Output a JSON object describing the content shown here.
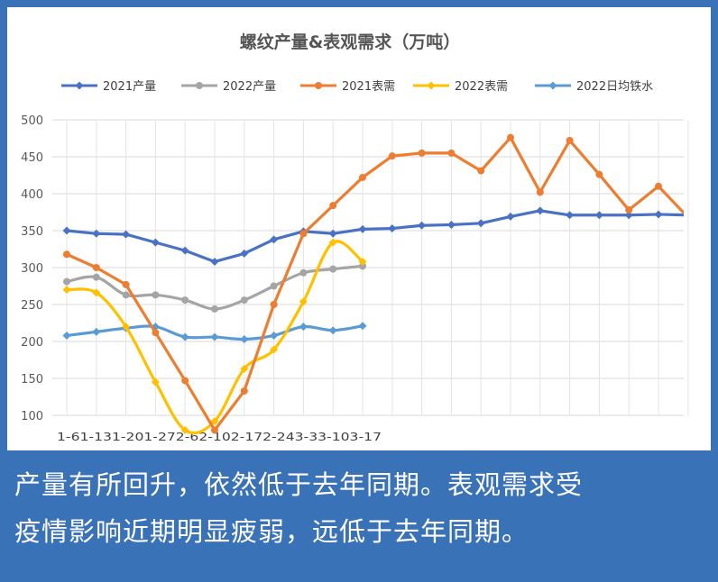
{
  "caption": {
    "line1": "产量有所回升，依然低于去年同期。表观需求受",
    "line2": "疫情影响近期明显疲弱，远低于去年同期。"
  },
  "chart_data": {
    "type": "line",
    "title": "螺纹产量&表观需求（万吨）",
    "xlabel": "",
    "ylabel": "",
    "ylim": [
      100,
      500
    ],
    "yticks": [
      "100",
      "150",
      "200",
      "250",
      "300",
      "350",
      "400",
      "450",
      "500"
    ],
    "x_tick_labels": [
      "1-6",
      "1-13",
      "1-20",
      "1-27",
      "2-6",
      "2-10",
      "2-17",
      "2-24",
      "3-3",
      "3-10",
      "3-17"
    ],
    "grid": true,
    "legend_position": "top",
    "series": [
      {
        "name": "2021产量",
        "color": "#4a72c4",
        "marker": "diamond",
        "smooth": false,
        "values": [
          350,
          346,
          345,
          334,
          323,
          308,
          319,
          338,
          349,
          346,
          352,
          353,
          357,
          358,
          360,
          369,
          377,
          371,
          371,
          371,
          372,
          371
        ]
      },
      {
        "name": "2022产量",
        "color": "#a5a5a5",
        "marker": "circle",
        "smooth": true,
        "values": [
          281,
          287,
          263,
          263,
          256,
          244,
          256,
          275,
          293,
          298,
          302
        ]
      },
      {
        "name": "2021表需",
        "color": "#ed7d31",
        "marker": "circle",
        "smooth": false,
        "values": [
          318,
          300,
          277,
          212,
          147,
          80,
          133,
          250,
          346,
          384,
          422,
          451,
          455,
          455,
          431,
          476,
          402,
          472,
          426,
          378,
          410,
          368
        ]
      },
      {
        "name": "2022表需",
        "color": "#ffc000",
        "marker": "diamond",
        "smooth": true,
        "values": [
          270,
          266,
          220,
          145,
          80,
          92,
          163,
          189,
          254,
          334,
          308
        ]
      },
      {
        "name": "2022日均铁水",
        "color": "#5b9bd5",
        "marker": "diamond",
        "smooth": true,
        "values": [
          208,
          213,
          218,
          220,
          206,
          206,
          203,
          208,
          220,
          215,
          221
        ]
      }
    ]
  }
}
